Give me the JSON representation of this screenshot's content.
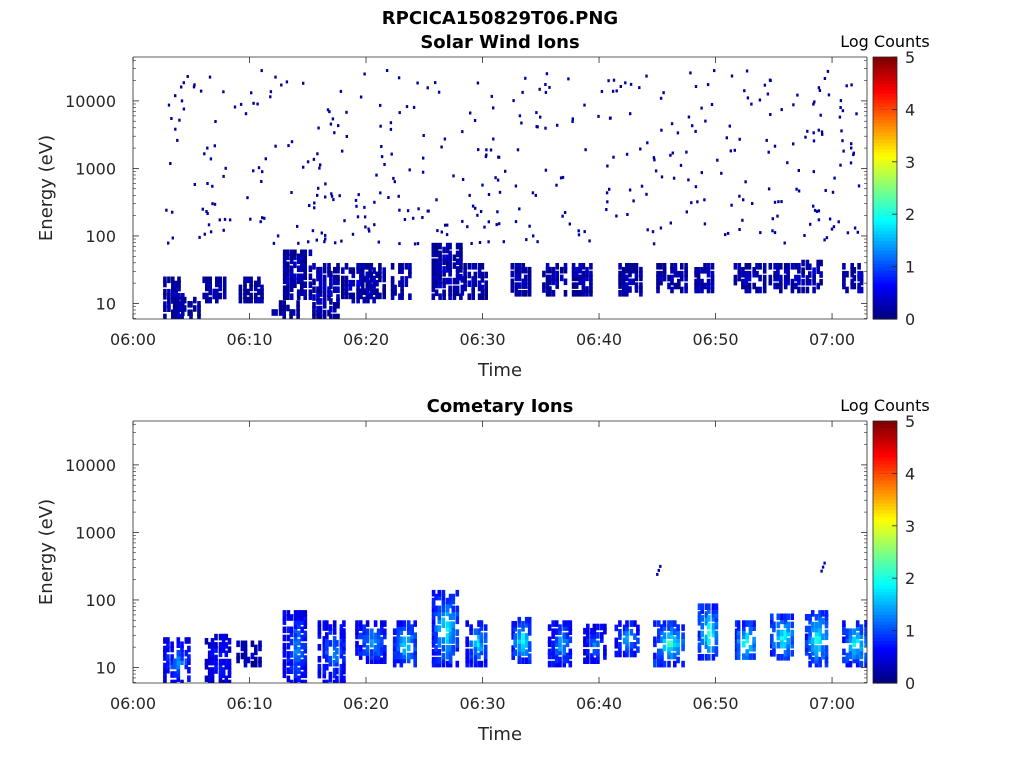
{
  "figure_title": "RPCICA150829T06.PNG",
  "colorbar": {
    "label": "Log Counts",
    "ticks": [
      "0",
      "1",
      "2",
      "3",
      "4",
      "5"
    ],
    "range": [
      0,
      5
    ],
    "colormap": "jet"
  },
  "chart_data": [
    {
      "type": "heatmap",
      "title": "Solar Wind Ions",
      "xlabel": "Time",
      "ylabel": "Energy (eV)",
      "xticks": [
        "06:00",
        "06:10",
        "06:20",
        "06:30",
        "06:40",
        "06:50",
        "07:00"
      ],
      "yticks": [
        "10",
        "100",
        "1000",
        "10000"
      ],
      "xlim_minutes": [
        0,
        63
      ],
      "ylim_log10": [
        0.77,
        4.65
      ],
      "yscale": "log",
      "grid": false,
      "sweeps": [
        {
          "t": 3.5,
          "lo": 0.8,
          "hi": 1.35,
          "c": 0.2
        },
        {
          "t": 4.3,
          "lo": 0.8,
          "hi": 1.05,
          "c": 0.15
        },
        {
          "t": 6.8,
          "lo": 1.05,
          "hi": 1.35,
          "c": 0.2
        },
        {
          "t": 10.0,
          "lo": 1.05,
          "hi": 1.35,
          "c": 0.15
        },
        {
          "t": 12.8,
          "lo": 0.8,
          "hi": 1.0,
          "c": 0.1
        },
        {
          "t": 13.8,
          "lo": 1.1,
          "hi": 1.75,
          "c": 0.25
        },
        {
          "t": 16.3,
          "lo": 0.8,
          "hi": 1.55,
          "c": 0.25
        },
        {
          "t": 18.8,
          "lo": 1.05,
          "hi": 1.55,
          "c": 0.25
        },
        {
          "t": 20.5,
          "lo": 1.05,
          "hi": 1.55,
          "c": 0.15
        },
        {
          "t": 23.0,
          "lo": 1.1,
          "hi": 1.55,
          "c": 0.2
        },
        {
          "t": 26.5,
          "lo": 1.1,
          "hi": 1.85,
          "c": 0.2
        },
        {
          "t": 29.0,
          "lo": 1.1,
          "hi": 1.55,
          "c": 0.2
        },
        {
          "t": 33.3,
          "lo": 1.15,
          "hi": 1.55,
          "c": 0.2
        },
        {
          "t": 36.0,
          "lo": 1.15,
          "hi": 1.55,
          "c": 0.2
        },
        {
          "t": 38.5,
          "lo": 1.15,
          "hi": 1.55,
          "c": 0.2
        },
        {
          "t": 42.5,
          "lo": 1.15,
          "hi": 1.55,
          "c": 0.2
        },
        {
          "t": 45.8,
          "lo": 1.2,
          "hi": 1.55,
          "c": 0.25
        },
        {
          "t": 49.0,
          "lo": 1.2,
          "hi": 1.55,
          "c": 0.25
        },
        {
          "t": 52.5,
          "lo": 1.2,
          "hi": 1.55,
          "c": 0.25
        },
        {
          "t": 55.5,
          "lo": 1.2,
          "hi": 1.55,
          "c": 0.25
        },
        {
          "t": 58.3,
          "lo": 1.2,
          "hi": 1.6,
          "c": 0.25
        },
        {
          "t": 61.8,
          "lo": 1.2,
          "hi": 1.55,
          "c": 0.25
        }
      ]
    },
    {
      "type": "heatmap",
      "title": "Cometary Ions",
      "xlabel": "Time",
      "ylabel": "Energy (eV)",
      "xticks": [
        "06:00",
        "06:10",
        "06:20",
        "06:30",
        "06:40",
        "06:50",
        "07:00"
      ],
      "yticks": [
        "10",
        "100",
        "1000",
        "10000"
      ],
      "xlim_minutes": [
        0,
        63
      ],
      "ylim_log10": [
        0.77,
        4.65
      ],
      "yscale": "log",
      "grid": false,
      "sweeps": [
        {
          "t": 3.5,
          "lo": 0.77,
          "hi": 1.4,
          "c": 1.3
        },
        {
          "t": 7.0,
          "lo": 0.77,
          "hi": 1.45,
          "c": 0.8
        },
        {
          "t": 9.8,
          "lo": 1.05,
          "hi": 1.35,
          "c": 0.4
        },
        {
          "t": 13.8,
          "lo": 0.77,
          "hi": 1.8,
          "c": 1.3
        },
        {
          "t": 16.8,
          "lo": 0.77,
          "hi": 1.65,
          "c": 1.3
        },
        {
          "t": 20.0,
          "lo": 1.1,
          "hi": 1.65,
          "c": 1.5
        },
        {
          "t": 23.2,
          "lo": 1.05,
          "hi": 1.65,
          "c": 1.8
        },
        {
          "t": 26.5,
          "lo": 1.05,
          "hi": 2.1,
          "c": 1.8
        },
        {
          "t": 29.5,
          "lo": 1.05,
          "hi": 1.65,
          "c": 1.7
        },
        {
          "t": 33.3,
          "lo": 1.1,
          "hi": 1.7,
          "c": 1.9
        },
        {
          "t": 36.5,
          "lo": 1.05,
          "hi": 1.65,
          "c": 1.5
        },
        {
          "t": 39.5,
          "lo": 1.1,
          "hi": 1.6,
          "c": 1.2
        },
        {
          "t": 42.3,
          "lo": 1.2,
          "hi": 1.65,
          "c": 1.6
        },
        {
          "t": 45.5,
          "lo": 1.05,
          "hi": 1.65,
          "c": 2.1
        },
        {
          "t": 49.3,
          "lo": 1.15,
          "hi": 1.9,
          "c": 2.1
        },
        {
          "t": 52.5,
          "lo": 1.1,
          "hi": 1.65,
          "c": 2.1
        },
        {
          "t": 55.5,
          "lo": 1.15,
          "hi": 1.75,
          "c": 2.1
        },
        {
          "t": 58.5,
          "lo": 1.05,
          "hi": 1.8,
          "c": 2.1
        },
        {
          "t": 61.8,
          "lo": 1.05,
          "hi": 1.65,
          "c": 2.0
        }
      ],
      "isolated_points": [
        {
          "t": 44.9,
          "log10_energy": 2.4
        },
        {
          "t": 59.0,
          "log10_energy": 2.45
        }
      ]
    }
  ]
}
